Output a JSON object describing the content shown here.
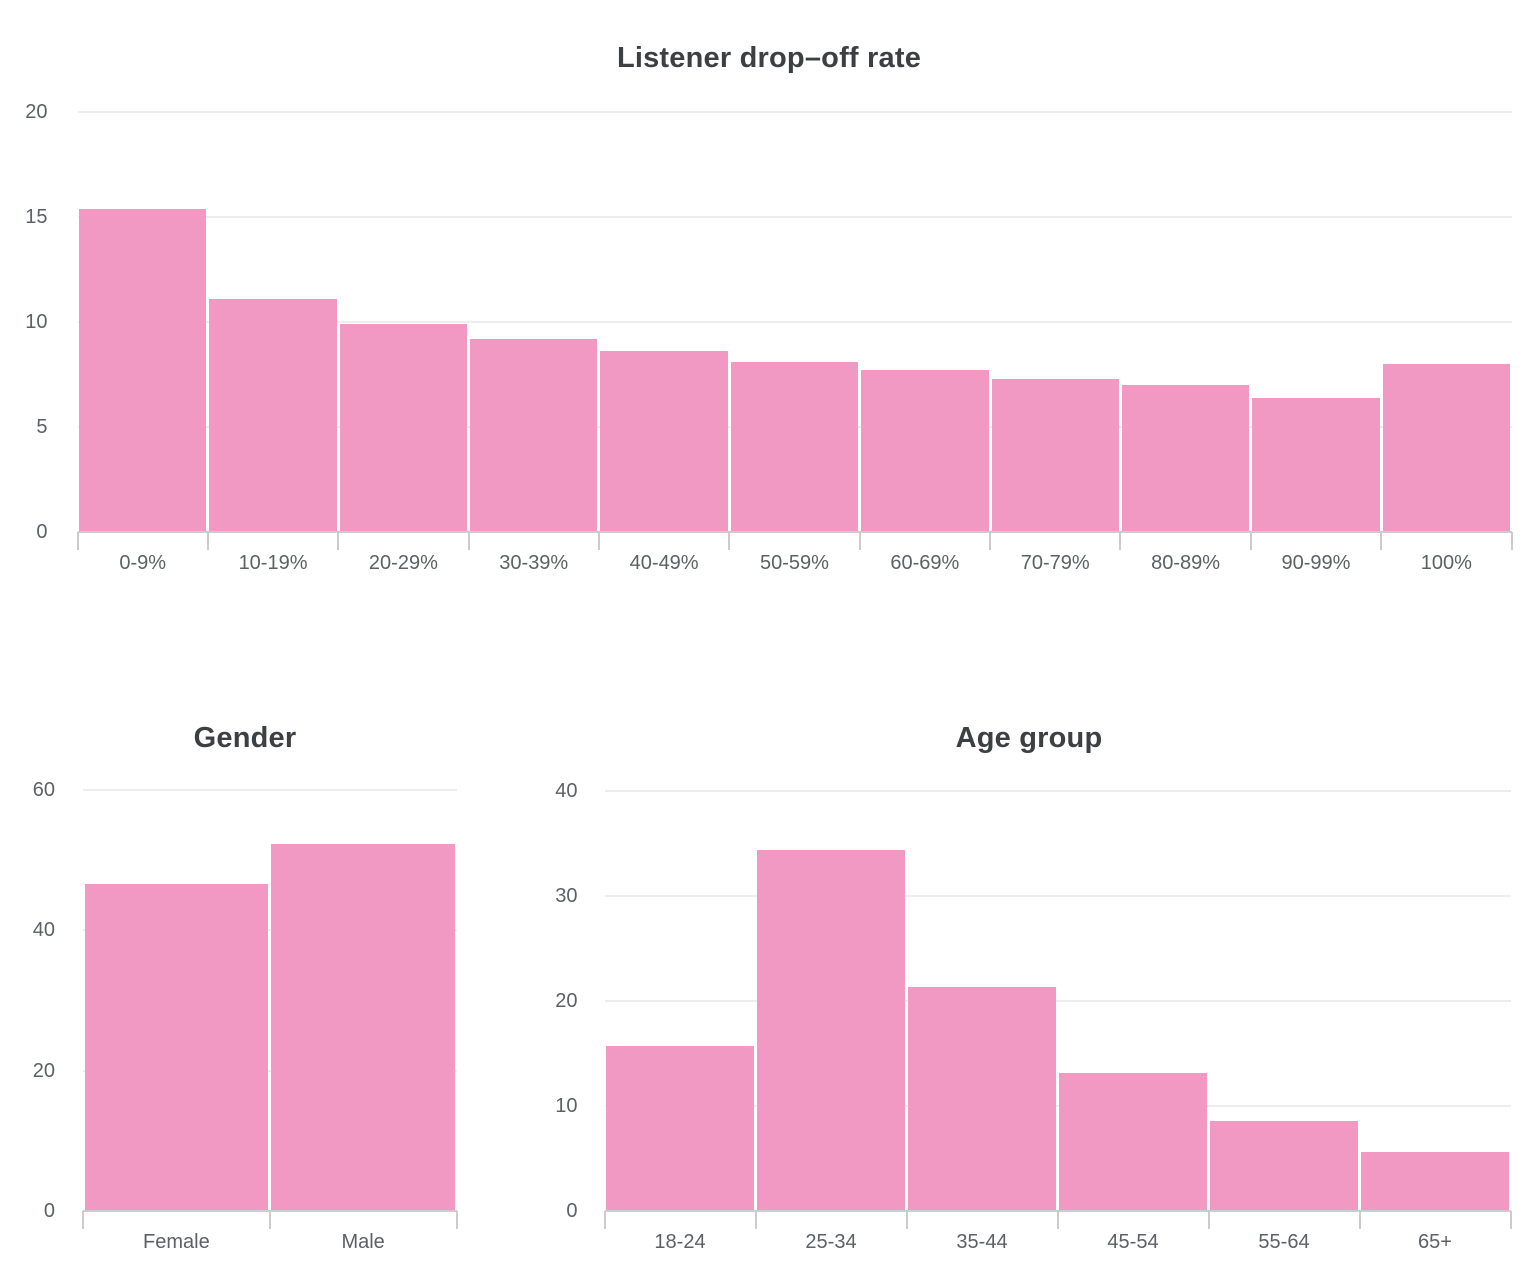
{
  "page": {
    "background": "#ffffff"
  },
  "colors": {
    "bar": "#F299C3",
    "gridline": "#EDEDED",
    "axis_line": "#CCCCCC",
    "axis_label": "#5C6165",
    "title": "#3C4043"
  },
  "chart_data": [
    {
      "type": "bar",
      "title": "Listener drop–off rate",
      "categories": [
        "0-9%",
        "10-19%",
        "20-29%",
        "30-39%",
        "40-49%",
        "50-59%",
        "60-69%",
        "70-79%",
        "80-89%",
        "90-99%",
        "100%"
      ],
      "values": [
        15.4,
        11.1,
        9.9,
        9.2,
        8.6,
        8.1,
        7.7,
        7.3,
        7.0,
        6.4,
        8.0
      ],
      "xlabel": "",
      "ylabel": "",
      "ylim": [
        0,
        20
      ],
      "yticks": [
        0,
        5,
        10,
        15,
        20
      ],
      "grid": true,
      "legend": "none",
      "bar_color": "#F299C3"
    },
    {
      "type": "bar",
      "title": "Gender",
      "categories": [
        "Female",
        "Male"
      ],
      "values": [
        46.6,
        52.3
      ],
      "xlabel": "",
      "ylabel": "",
      "ylim": [
        0,
        60
      ],
      "yticks": [
        0,
        20,
        40,
        60
      ],
      "grid": true,
      "legend": "none",
      "bar_color": "#F299C3"
    },
    {
      "type": "bar",
      "title": "Age group",
      "categories": [
        "18-24",
        "25-34",
        "35-44",
        "45-54",
        "55-64",
        "65+"
      ],
      "values": [
        15.7,
        34.4,
        21.3,
        13.1,
        8.6,
        5.6
      ],
      "xlabel": "",
      "ylabel": "",
      "ylim": [
        0,
        40
      ],
      "yticks": [
        0,
        10,
        20,
        30,
        40
      ],
      "grid": true,
      "legend": "none",
      "bar_color": "#F299C3"
    }
  ]
}
